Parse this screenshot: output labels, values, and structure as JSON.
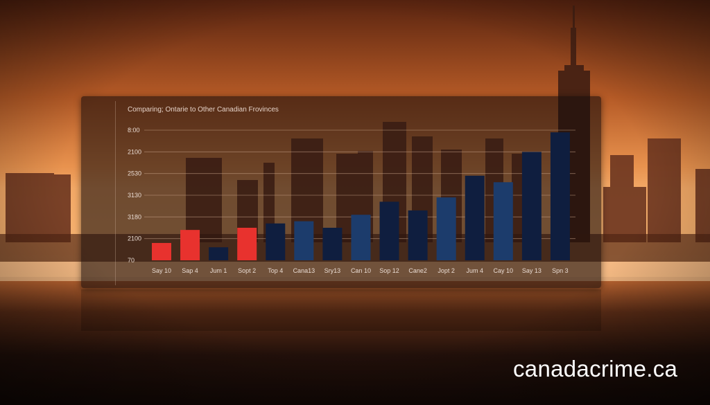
{
  "watermark": "canadacrime.ca",
  "colors": {
    "bar_red": "#e8322e",
    "bar_blue": "#1c3c6c",
    "bar_navy": "#0f1e3f",
    "gridline": "#c9a48a",
    "text": "#e9dbd2"
  },
  "chart_data": {
    "type": "bar",
    "title": "Comparing; Ontarie to Other Canadian Frovinces",
    "xlabel": "",
    "ylabel": "",
    "ytick_labels": [
      "70",
      "2100",
      "3180",
      "3130",
      "2530",
      "2100",
      "8:00"
    ],
    "grid": true,
    "categories": [
      "Say 10",
      "Sap 4",
      "Jum 1",
      "Sopt 2",
      "Top 4",
      "Cana13",
      "Sry13",
      "Can 10",
      "Sop 12",
      "Cane2",
      "Jopt 2",
      "Jum 4",
      "Cay 10",
      "Say 13",
      "Spn 3"
    ],
    "values": [
      0.8,
      1.4,
      0.6,
      1.5,
      1.7,
      1.8,
      1.5,
      2.1,
      2.7,
      2.3,
      2.9,
      3.9,
      3.6,
      5.0,
      5.9
    ],
    "bar_colors": [
      "red",
      "red",
      "navy",
      "red",
      "navy",
      "blue",
      "navy",
      "blue",
      "navy",
      "navy",
      "blue",
      "navy",
      "blue",
      "navy",
      "navy"
    ],
    "ylim": [
      0,
      6
    ]
  }
}
